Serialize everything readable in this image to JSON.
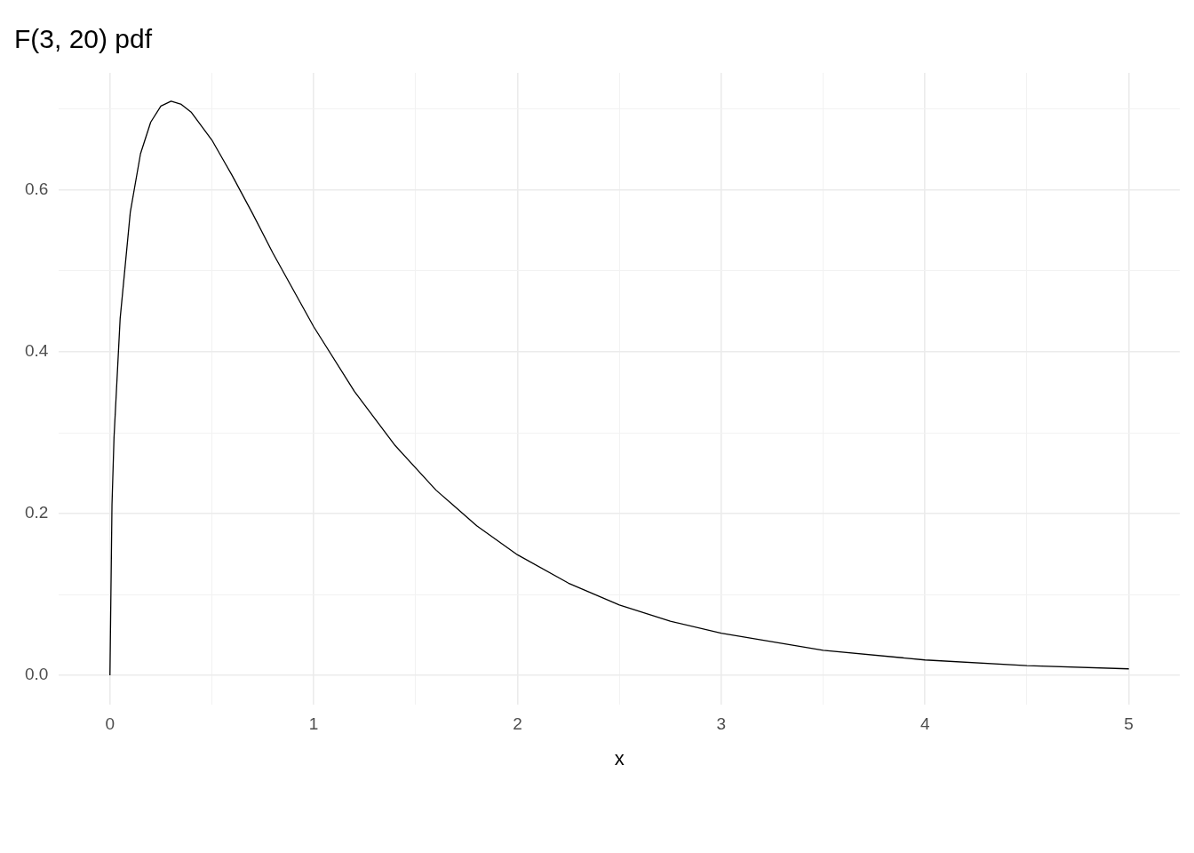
{
  "chart_data": {
    "type": "line",
    "title": "F(3, 20) pdf",
    "xlabel": "x",
    "x": [
      0,
      0.01,
      0.02,
      0.05,
      0.1,
      0.15,
      0.2,
      0.25,
      0.3,
      0.35,
      0.4,
      0.5,
      0.6,
      0.7,
      0.8,
      1.0,
      1.2,
      1.4,
      1.6,
      1.8,
      2.0,
      2.25,
      2.5,
      2.75,
      3.0,
      3.5,
      4.0,
      4.5,
      5.0
    ],
    "series": [
      {
        "color": "#000000",
        "values": [
          0,
          0.211,
          0.294,
          0.441,
          0.573,
          0.645,
          0.684,
          0.704,
          0.71,
          0.706,
          0.696,
          0.662,
          0.618,
          0.571,
          0.522,
          0.431,
          0.351,
          0.284,
          0.229,
          0.185,
          0.149,
          0.114,
          0.087,
          0.067,
          0.052,
          0.031,
          0.019,
          0.012,
          0.008
        ]
      }
    ],
    "xlim": [
      -0.25,
      5.25
    ],
    "ylim": [
      -0.036,
      0.745
    ],
    "xticks": [
      0,
      {
        "value": 0.5,
        "label": null
      },
      1,
      {
        "value": 1.5,
        "label": null
      },
      2,
      {
        "value": 2.5,
        "label": null
      },
      3,
      {
        "value": 3.5,
        "label": null
      },
      4,
      {
        "value": 4.5,
        "label": null
      },
      5
    ],
    "yticks": [
      {
        "value": 0,
        "label": "0.0"
      },
      {
        "value": 0.1,
        "label": null
      },
      0.2,
      {
        "value": 0.3,
        "label": null
      },
      0.4,
      {
        "value": 0.5,
        "label": null
      },
      0.6,
      {
        "value": 0.7,
        "label": null
      }
    ],
    "grid": true,
    "legend": false,
    "marker": "none",
    "line_style": "solid"
  }
}
